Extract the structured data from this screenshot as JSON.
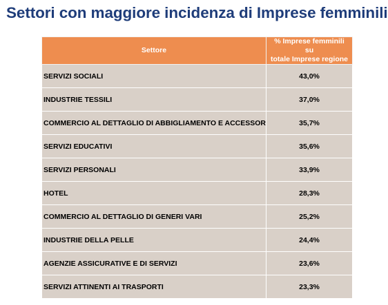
{
  "title": "Settori con maggiore incidenza di Imprese femminili",
  "table": {
    "headers": {
      "sector": "Settore",
      "value_line1": "% Imprese femminili su",
      "value_line2": "totale Imprese regione"
    },
    "rows": [
      {
        "sector": "SERVIZI SOCIALI",
        "value": "43,0%"
      },
      {
        "sector": "INDUSTRIE TESSILI",
        "value": "37,0%"
      },
      {
        "sector": "COMMERCIO AL DETTAGLIO DI ABBIGLIAMENTO E ACCESSORI",
        "value": "35,7%"
      },
      {
        "sector": "SERVIZI EDUCATIVI",
        "value": "35,6%"
      },
      {
        "sector": "SERVIZI PERSONALI",
        "value": "33,9%"
      },
      {
        "sector": "HOTEL",
        "value": "28,3%"
      },
      {
        "sector": "COMMERCIO AL DETTAGLIO DI GENERI VARI",
        "value": "25,2%"
      },
      {
        "sector": "INDUSTRIE DELLA PELLE",
        "value": "24,4%"
      },
      {
        "sector": "AGENZIE ASSICURATIVE E DI SERVIZI",
        "value": "23,6%"
      },
      {
        "sector": "SERVIZI ATTINENTI AI TRASPORTI",
        "value": "23,3%"
      }
    ]
  },
  "colors": {
    "title": "#1f3d7a",
    "header_bg": "#ee8d4f",
    "row_bg": "#d9d0c8"
  }
}
